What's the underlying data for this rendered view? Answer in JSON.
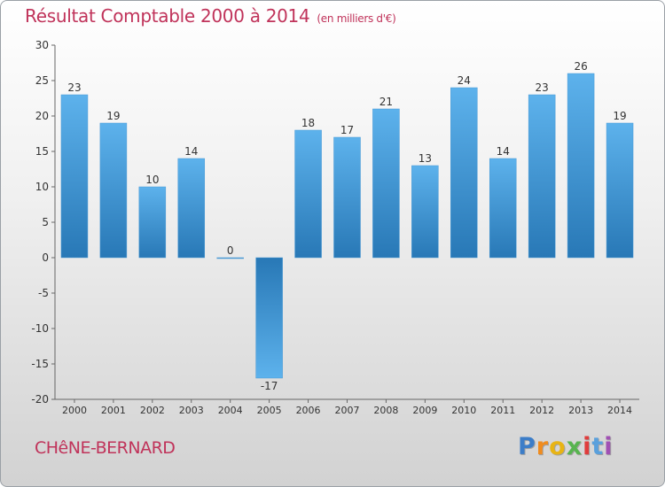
{
  "chart_data": {
    "type": "bar",
    "title": "Résultat Comptable 2000 à 2014",
    "subtitle": "(en milliers d'€)",
    "categories": [
      "2000",
      "2001",
      "2002",
      "2003",
      "2004",
      "2005",
      "2006",
      "2007",
      "2008",
      "2009",
      "2010",
      "2011",
      "2012",
      "2013",
      "2014"
    ],
    "values": [
      23,
      19,
      10,
      14,
      0,
      -17,
      18,
      17,
      21,
      13,
      24,
      14,
      23,
      26,
      19
    ],
    "ylim": [
      -20,
      30
    ],
    "yticks": [
      -20,
      -15,
      -10,
      -5,
      0,
      5,
      10,
      15,
      20,
      25,
      30
    ],
    "grid": false,
    "xlabel": "",
    "ylabel": ""
  },
  "commune": "CHêNE-BERNARD",
  "brand": {
    "text": "Proxiti",
    "letters": [
      "P",
      "r",
      "o",
      "x",
      "i",
      "t",
      "i"
    ],
    "colors": [
      "#3c7dc8",
      "#f08c1e",
      "#e8b414",
      "#58b450",
      "#e03c3c",
      "#5aa0dc",
      "#a050b4"
    ]
  },
  "colors": {
    "title": "#c0335a",
    "bar_light": "#5aaee8",
    "bar_dark": "#2a7ab8",
    "axis": "#555555"
  }
}
